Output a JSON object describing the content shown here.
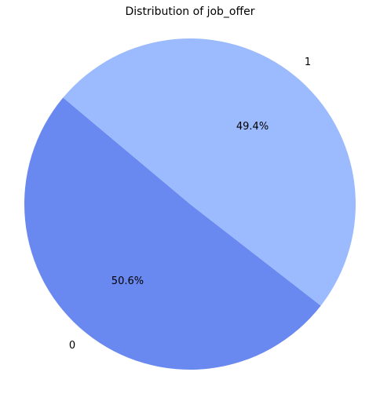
{
  "chart_data": {
    "type": "pie",
    "title": "Distribution of job_offer",
    "start_angle_deg": 140,
    "counterclock": true,
    "slices": [
      {
        "label": "0",
        "value": 50.6,
        "percent_label": "50.6%",
        "color": "#6989F0"
      },
      {
        "label": "1",
        "value": 49.4,
        "percent_label": "49.4%",
        "color": "#9BBBFE"
      }
    ]
  }
}
